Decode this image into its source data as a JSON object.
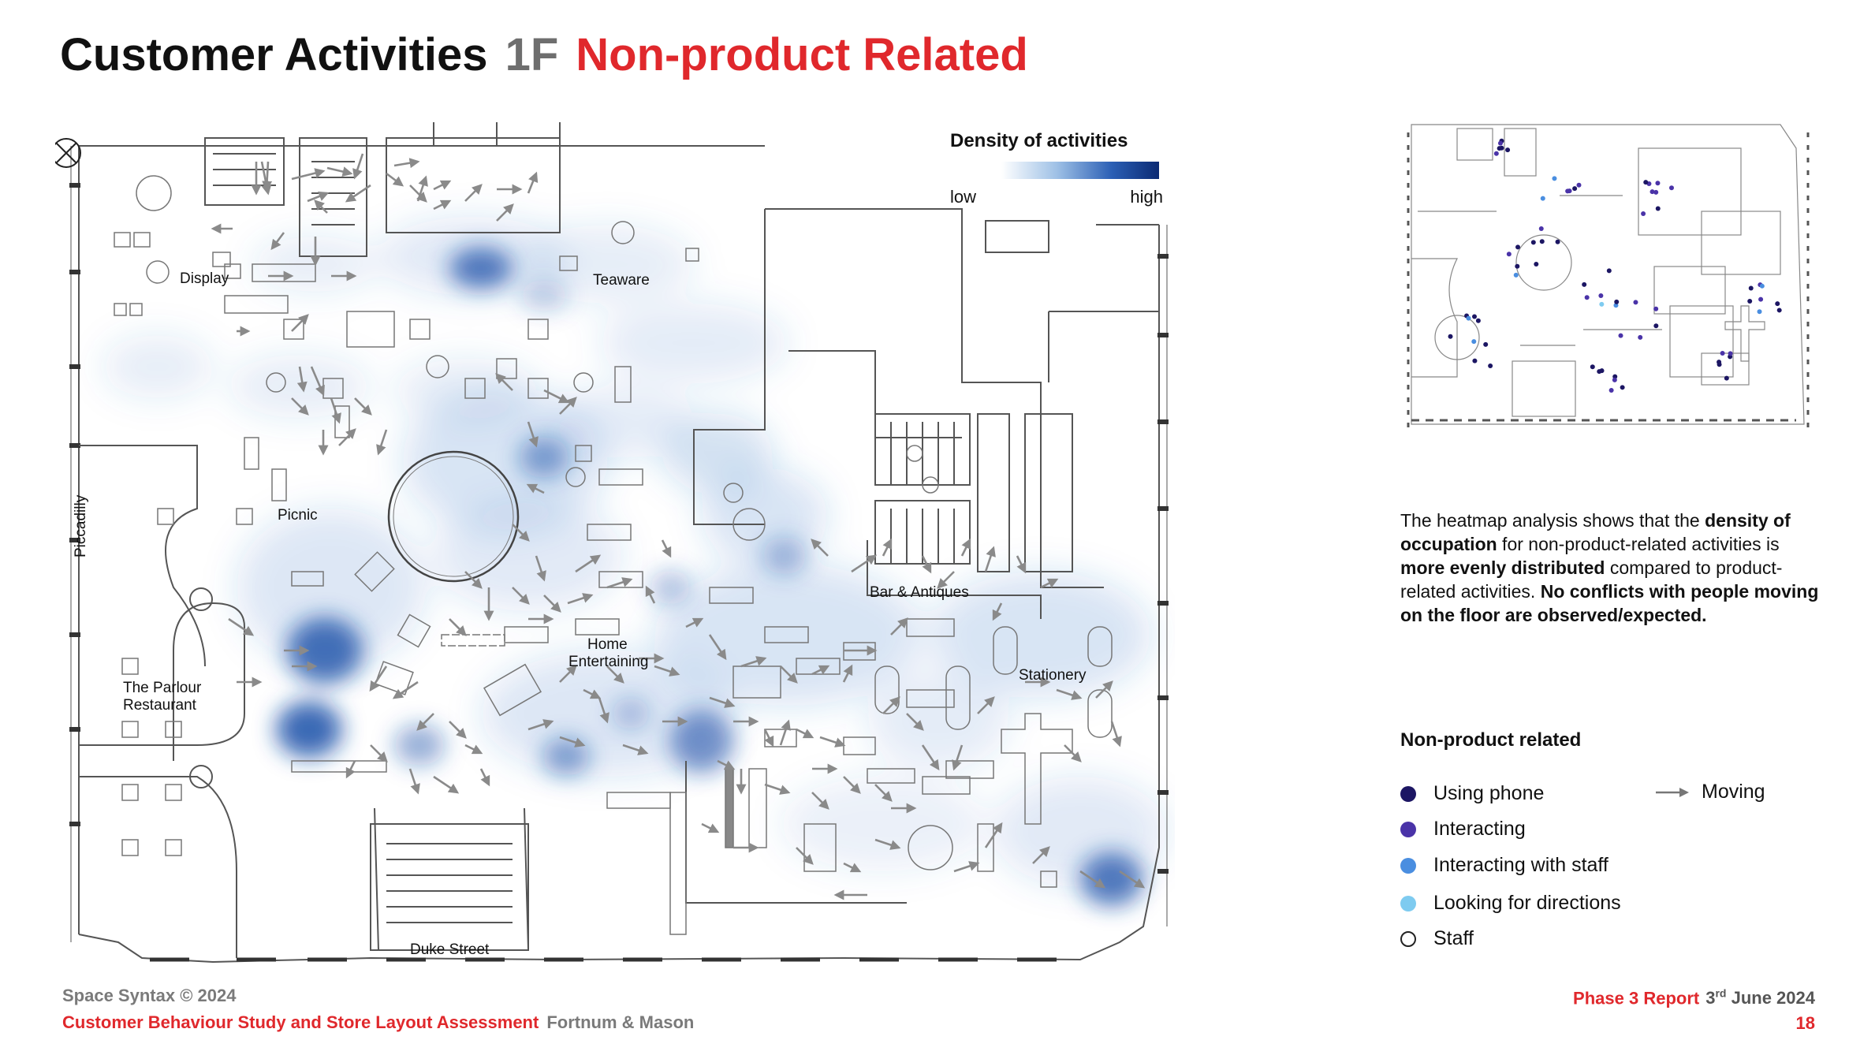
{
  "title": {
    "main": "Customer Activities",
    "floor": "1F",
    "subtitle": "Non-product Related"
  },
  "map": {
    "area_labels": [
      {
        "name": "display",
        "text": "Display"
      },
      {
        "name": "teaware",
        "text": "Teaware"
      },
      {
        "name": "picnic",
        "text": "Picnic"
      },
      {
        "name": "piccadilly",
        "text": "Piccadilly"
      },
      {
        "name": "bar-antiques",
        "text": "Bar & Antiques"
      },
      {
        "name": "home-entertaining-1",
        "text": "Home"
      },
      {
        "name": "home-entertaining-2",
        "text": "Entertaining"
      },
      {
        "name": "stationery",
        "text": "Stationery"
      },
      {
        "name": "parlour-1",
        "text": "The Parlour"
      },
      {
        "name": "parlour-2",
        "text": "Restaurant"
      },
      {
        "name": "duke-street",
        "text": "Duke Street"
      }
    ],
    "heat_color": "#2b5fb5"
  },
  "density_legend": {
    "title": "Density of activities",
    "low": "low",
    "high": "high"
  },
  "description": {
    "p1": "The heatmap analysis shows that the ",
    "b1": "density of occupation",
    "p2": " for non-product-related activities is ",
    "b2": "more evenly distributed",
    "p3": " compared to product-related activities. ",
    "b3": "No conflicts with people moving on the floor are observed/expected."
  },
  "legend": {
    "title": "Non-product related",
    "items": [
      {
        "label": "Using phone",
        "color": "#1c1663"
      },
      {
        "label": "Interacting",
        "color": "#4a33a8"
      },
      {
        "label": "Interacting with staff",
        "color": "#4a8ee0"
      },
      {
        "label": "Looking for directions",
        "color": "#7ecbf0"
      },
      {
        "label": "Staff",
        "color": "#ffffff"
      }
    ],
    "moving_label": "Moving"
  },
  "footer": {
    "copyright": "Space Syntax © 2024",
    "study": "Customer Behaviour Study and Store Layout Assessment",
    "client": "Fortnum & Mason",
    "report": "Phase 3 Report",
    "date_day": "3",
    "date_suffix": "rd",
    "date_rest": "June 2024",
    "page": "18"
  }
}
